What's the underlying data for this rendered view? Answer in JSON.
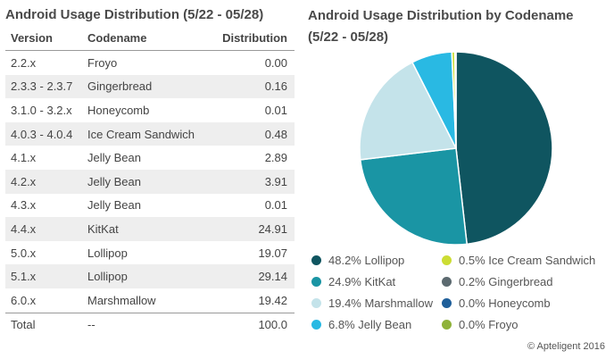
{
  "table_title": "Android Usage Distribution (5/22 - 05/28)",
  "table_headers": [
    "Version",
    "Codename",
    "Distribution"
  ],
  "table_rows": [
    {
      "version": "2.2.x",
      "codename": "Froyo",
      "distribution": "0.00"
    },
    {
      "version": "2.3.3 - 2.3.7",
      "codename": "Gingerbread",
      "distribution": "0.16"
    },
    {
      "version": "3.1.0 - 3.2.x",
      "codename": "Honeycomb",
      "distribution": "0.01"
    },
    {
      "version": "4.0.3 - 4.0.4",
      "codename": "Ice Cream Sandwich",
      "distribution": "0.48"
    },
    {
      "version": "4.1.x",
      "codename": "Jelly Bean",
      "distribution": "2.89"
    },
    {
      "version": "4.2.x",
      "codename": "Jelly Bean",
      "distribution": "3.91"
    },
    {
      "version": "4.3.x",
      "codename": "Jelly Bean",
      "distribution": "0.01"
    },
    {
      "version": "4.4.x",
      "codename": "KitKat",
      "distribution": "24.91"
    },
    {
      "version": "5.0.x",
      "codename": "Lollipop",
      "distribution": "19.07"
    },
    {
      "version": "5.1.x",
      "codename": "Lollipop",
      "distribution": "29.14"
    },
    {
      "version": "6.0.x",
      "codename": "Marshmallow",
      "distribution": "19.42"
    }
  ],
  "table_total": {
    "version": "Total",
    "codename": "--",
    "distribution": "100.0"
  },
  "credit": "© Apteligent 2016",
  "chart_data": {
    "type": "pie",
    "title": "Android Usage Distribution by Codename (5/22 - 05/28)",
    "legend_placement": "bottom",
    "slices": [
      {
        "label": "48.2% Lollipop",
        "value": 48.2,
        "color": "#0f5560"
      },
      {
        "label": "24.9% KitKat",
        "value": 24.9,
        "color": "#1a95a4"
      },
      {
        "label": "19.4% Marshmallow",
        "value": 19.4,
        "color": "#c4e3ea"
      },
      {
        "label": "6.8% Jelly Bean",
        "value": 6.8,
        "color": "#29b9e3"
      },
      {
        "label": "0.5% Ice Cream Sandwich",
        "value": 0.5,
        "color": "#ccdd33"
      },
      {
        "label": "0.2% Gingerbread",
        "value": 0.2,
        "color": "#5c6a70"
      },
      {
        "label": "0.0% Honeycomb",
        "value": 0.0,
        "color": "#1f5f9a"
      },
      {
        "label": "0.0% Froyo",
        "value": 0.0,
        "color": "#8fb23a"
      }
    ]
  }
}
